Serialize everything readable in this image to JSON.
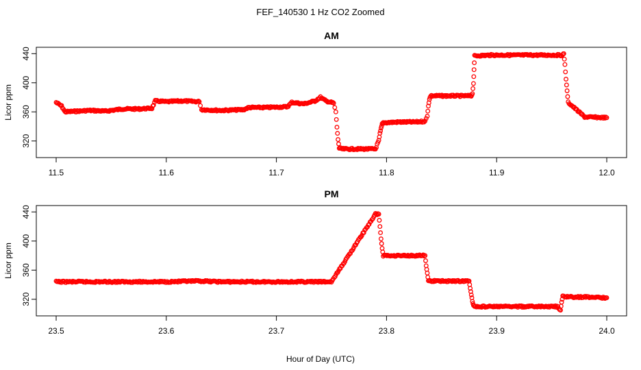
{
  "title": "FEF_140530  1 Hz CO2 Zoomed",
  "xlabel": "Hour of Day (UTC)",
  "point_color": "#ff0000",
  "chart_data": [
    {
      "type": "scatter",
      "title": "AM",
      "xlabel": "",
      "ylabel": "Licor ppm",
      "xlim": [
        11.5,
        12.0
      ],
      "ylim": [
        300,
        445
      ],
      "x_ticks": [
        11.5,
        11.6,
        11.7,
        11.8,
        11.9,
        12.0
      ],
      "x_tick_labels": [
        "11.5",
        "11.6",
        "11.7",
        "11.8",
        "11.9",
        "12.0"
      ],
      "y_ticks": [
        320,
        360,
        400,
        440
      ],
      "y_tick_labels": [
        "320",
        "360",
        "400",
        "440"
      ],
      "grid": false,
      "marker": "open-circle",
      "series": [
        {
          "x": [
            11.5,
            11.505,
            11.508,
            11.52,
            11.53,
            11.545,
            11.56,
            11.575,
            11.587,
            11.59,
            11.6,
            11.615,
            11.63,
            11.632,
            11.65,
            11.67,
            11.675,
            11.69,
            11.71,
            11.714,
            11.725,
            11.735,
            11.74,
            11.745,
            11.752,
            11.754,
            11.755,
            11.756,
            11.757,
            11.76,
            11.775,
            11.79,
            11.793,
            11.794,
            11.795,
            11.796,
            11.797,
            11.81,
            11.825,
            11.835,
            11.837,
            11.838,
            11.839,
            11.84,
            11.855,
            11.87,
            11.877,
            11.878,
            11.879,
            11.88,
            11.895,
            11.91,
            11.93,
            11.945,
            11.958,
            11.96,
            11.961,
            11.962,
            11.963,
            11.964,
            11.965,
            11.98,
            12.0
          ],
          "y": [
            373,
            368,
            360,
            361,
            362,
            361,
            364,
            364,
            365,
            375,
            374,
            375,
            374,
            363,
            362,
            363,
            366,
            366,
            367,
            373,
            371,
            375,
            380,
            375,
            372,
            360,
            339,
            322,
            310,
            309,
            309,
            309,
            321,
            330,
            337,
            343,
            345,
            346,
            346,
            347,
            354,
            368,
            377,
            382,
            382,
            382,
            382,
            385,
            399,
            437,
            438,
            438,
            438,
            438,
            438,
            438,
            440,
            425,
            405,
            389,
            373,
            353,
            352
          ]
        }
      ]
    },
    {
      "type": "scatter",
      "title": "PM",
      "xlabel": "",
      "ylabel": "Licor ppm",
      "xlim": [
        23.5,
        24.0
      ],
      "ylim": [
        300,
        445
      ],
      "x_ticks": [
        23.5,
        23.6,
        23.7,
        23.8,
        23.9,
        24.0
      ],
      "x_tick_labels": [
        "23.5",
        "23.6",
        "23.7",
        "23.8",
        "23.9",
        "24.0"
      ],
      "y_ticks": [
        320,
        360,
        400,
        440
      ],
      "y_tick_labels": [
        "320",
        "360",
        "400",
        "440"
      ],
      "grid": false,
      "marker": "open-circle",
      "series": [
        {
          "x": [
            23.5,
            23.55,
            23.6,
            23.63,
            23.65,
            23.7,
            23.75,
            23.79,
            23.793,
            23.794,
            23.795,
            23.796,
            23.797,
            23.81,
            23.825,
            23.835,
            23.836,
            23.837,
            23.838,
            23.85,
            23.865,
            23.875,
            23.876,
            23.877,
            23.878,
            23.879,
            23.88,
            23.9,
            23.92,
            23.94,
            23.955,
            23.958,
            23.959,
            23.96,
            23.97,
            23.985,
            24.0
          ],
          "y": [
            344,
            344,
            344,
            345,
            344,
            344,
            344,
            437,
            437,
            420,
            403,
            390,
            380,
            380,
            380,
            380,
            366,
            356,
            345,
            345,
            345,
            345,
            335,
            326,
            318,
            311,
            310,
            310,
            310,
            310,
            310,
            305,
            316,
            324,
            323,
            323,
            322
          ]
        }
      ]
    }
  ]
}
